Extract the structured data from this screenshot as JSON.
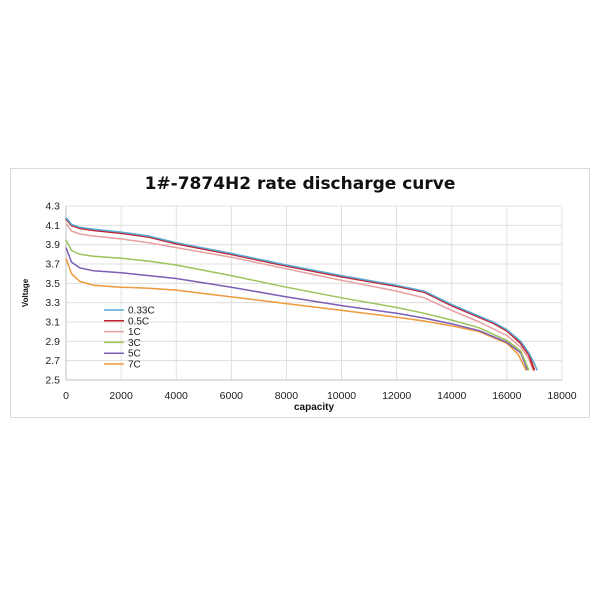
{
  "chart_data": {
    "type": "line",
    "title": "1#-7874H2 rate discharge curve",
    "xlabel": "capacity",
    "ylabel": "Voltage",
    "xlim": [
      0,
      18000
    ],
    "ylim": [
      2.5,
      4.3
    ],
    "xticks": [
      0,
      2000,
      4000,
      6000,
      8000,
      10000,
      12000,
      14000,
      16000,
      18000
    ],
    "yticks": [
      2.5,
      2.7,
      2.9,
      3.1,
      3.3,
      3.5,
      3.7,
      3.9,
      4.1,
      4.3
    ],
    "grid": true,
    "legend_position": "lower-left inside plot",
    "series": [
      {
        "name": "0.33C",
        "color": "#5aa9d6",
        "x": [
          0,
          200,
          500,
          1000,
          2000,
          3000,
          4000,
          6000,
          8000,
          10000,
          12000,
          13000,
          14000,
          15000,
          15500,
          16000,
          16500,
          16800,
          17000,
          17100
        ],
        "y": [
          4.18,
          4.11,
          4.08,
          4.06,
          4.03,
          3.99,
          3.92,
          3.81,
          3.69,
          3.58,
          3.48,
          3.42,
          3.28,
          3.16,
          3.1,
          3.02,
          2.9,
          2.78,
          2.67,
          2.6
        ]
      },
      {
        "name": "0.5C",
        "color": "#c0222a",
        "x": [
          0,
          200,
          500,
          1000,
          2000,
          3000,
          4000,
          6000,
          8000,
          10000,
          12000,
          13000,
          14000,
          15000,
          15500,
          16000,
          16500,
          16800,
          17000
        ],
        "y": [
          4.17,
          4.1,
          4.07,
          4.05,
          4.02,
          3.98,
          3.91,
          3.8,
          3.68,
          3.57,
          3.47,
          3.41,
          3.27,
          3.15,
          3.09,
          3.01,
          2.88,
          2.76,
          2.6
        ]
      },
      {
        "name": "1C",
        "color": "#e8a0a0",
        "x": [
          0,
          200,
          500,
          1000,
          2000,
          3000,
          4000,
          6000,
          8000,
          10000,
          12000,
          13000,
          14000,
          15000,
          16000,
          16500,
          16800,
          16950
        ],
        "y": [
          4.12,
          4.04,
          4.01,
          3.99,
          3.96,
          3.92,
          3.87,
          3.77,
          3.65,
          3.53,
          3.42,
          3.35,
          3.22,
          3.1,
          2.96,
          2.84,
          2.72,
          2.6
        ]
      },
      {
        "name": "3C",
        "color": "#9dc35a",
        "x": [
          0,
          200,
          500,
          1000,
          2000,
          3000,
          4000,
          6000,
          8000,
          10000,
          12000,
          13000,
          14000,
          15000,
          16000,
          16500,
          16800
        ],
        "y": [
          3.95,
          3.84,
          3.8,
          3.78,
          3.76,
          3.73,
          3.69,
          3.58,
          3.46,
          3.35,
          3.25,
          3.19,
          3.12,
          3.04,
          2.91,
          2.8,
          2.6
        ]
      },
      {
        "name": "5C",
        "color": "#7c5fb5",
        "x": [
          0,
          200,
          500,
          1000,
          2000,
          3000,
          4000,
          6000,
          8000,
          10000,
          12000,
          13000,
          14000,
          15000,
          16000,
          16500,
          16750
        ],
        "y": [
          3.87,
          3.72,
          3.66,
          3.63,
          3.61,
          3.58,
          3.55,
          3.46,
          3.36,
          3.27,
          3.19,
          3.14,
          3.08,
          3.01,
          2.89,
          2.78,
          2.6
        ]
      },
      {
        "name": "7C",
        "color": "#ef9a3c",
        "x": [
          0,
          200,
          500,
          1000,
          2000,
          3000,
          4000,
          6000,
          8000,
          10000,
          12000,
          13000,
          14000,
          15000,
          16000,
          16400,
          16700
        ],
        "y": [
          3.76,
          3.6,
          3.52,
          3.48,
          3.46,
          3.45,
          3.43,
          3.36,
          3.29,
          3.22,
          3.15,
          3.11,
          3.06,
          3.0,
          2.88,
          2.77,
          2.6
        ]
      }
    ]
  }
}
